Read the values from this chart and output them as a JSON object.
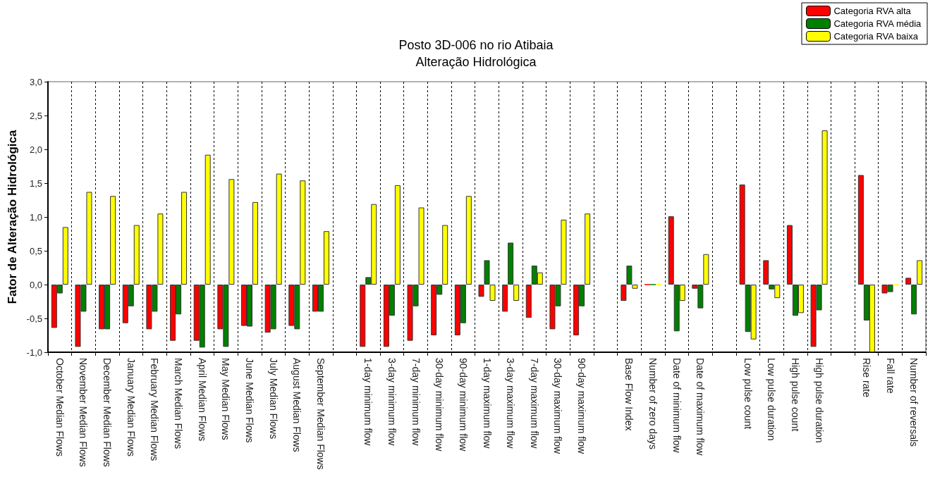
{
  "chart_data": {
    "type": "bar",
    "title": "Posto 3D-006 no rio Atibaia",
    "subtitle": "Alteração Hidrológica",
    "ylabel": "Fator de Alteração Hidrológica",
    "categories": [
      "October Median Flows",
      "November Median Flows",
      "December Median Flows",
      "January Median Flows",
      "February Median Flows",
      "March Median Flows",
      "April Median Flows",
      "May Median Flows",
      "June Median Flows",
      "July Median Flows",
      "August Median Flows",
      "September Median Flows",
      null,
      "1-day minimum flow",
      "3-day minimum flow",
      "7-day minimum flow",
      "30-day minimum flow",
      "90-day minimum flow",
      "1-day maximum flow",
      "3-day maximum flow",
      "7-day maximum flow",
      "30-day maximum flow",
      "90-day maximum flow",
      null,
      "Base Flow Index",
      "Number of zero days",
      "Date of minimum flow",
      "Date of maximum flow",
      null,
      "Low pulse count",
      "Low pulse duration",
      "High pulse count",
      "High pulse duration",
      null,
      "Rise rate",
      "Fall rate",
      "Number of reversals"
    ],
    "series": [
      {
        "name": "Categoria RVA alta",
        "color": "#ff0000",
        "values": [
          -0.64,
          -0.92,
          -0.66,
          -0.57,
          -0.66,
          -0.83,
          -0.83,
          -0.66,
          -0.61,
          -0.71,
          -0.61,
          -0.4,
          null,
          -0.92,
          -0.92,
          -0.83,
          -0.75,
          -0.75,
          -0.18,
          -0.4,
          -0.49,
          -0.66,
          -0.75,
          null,
          -0.24,
          0,
          1.01,
          -0.06,
          null,
          1.48,
          0.36,
          0.88,
          -0.92,
          null,
          1.62,
          -0.13,
          0.1
        ]
      },
      {
        "name": "Categoria RVA média",
        "color": "#008000",
        "values": [
          -0.13,
          -0.4,
          -0.66,
          -0.32,
          -0.4,
          -0.44,
          -0.93,
          -0.92,
          -0.62,
          -0.66,
          -0.66,
          -0.4,
          null,
          0.11,
          -0.46,
          -0.32,
          -0.15,
          -0.57,
          0.36,
          0.62,
          0.28,
          -0.32,
          -0.32,
          null,
          0.28,
          0,
          -0.69,
          -0.35,
          null,
          -0.7,
          -0.07,
          -0.46,
          -0.38,
          null,
          -0.53,
          -0.11,
          -0.44
        ]
      },
      {
        "name": "Categoria RVA baixa",
        "color": "#ffff00",
        "values": [
          0.85,
          1.37,
          1.31,
          0.88,
          1.05,
          1.37,
          1.92,
          1.56,
          1.22,
          1.64,
          1.54,
          0.79,
          null,
          1.19,
          1.47,
          1.14,
          0.88,
          1.31,
          -0.24,
          -0.24,
          0.18,
          0.96,
          1.05,
          null,
          -0.06,
          0,
          -0.24,
          0.45,
          null,
          -0.81,
          -0.2,
          -0.42,
          2.28,
          null,
          -1.0,
          0,
          0.36
        ]
      }
    ],
    "ylim": [
      -1.0,
      3.0
    ],
    "yticks": [
      {
        "value": -1.0,
        "label": "-1,0"
      },
      {
        "value": -0.5,
        "label": "-0,5"
      },
      {
        "value": 0,
        "label": "0,0"
      },
      {
        "value": 0.5,
        "label": "0,5"
      },
      {
        "value": 1.0,
        "label": "1,0"
      },
      {
        "value": 1.5,
        "label": "1,5"
      },
      {
        "value": 2.0,
        "label": "2,0"
      },
      {
        "value": 2.5,
        "label": "2,5"
      },
      {
        "value": 3.0,
        "label": "3,0"
      }
    ],
    "grid": "x",
    "legend": "top right"
  }
}
